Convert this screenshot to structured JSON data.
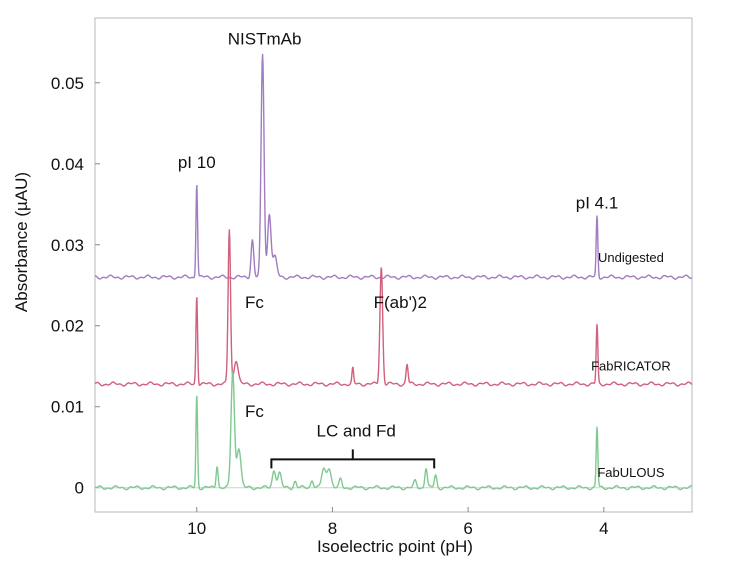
{
  "chart_data": {
    "type": "line",
    "title": "",
    "xlabel": "Isoelectric point (pH)",
    "ylabel": "Absorbance (µAU)",
    "xlim": [
      11.5,
      2.7
    ],
    "ylim": [
      -0.003,
      0.058
    ],
    "x_direction": "reversed",
    "x_ticks": [
      10,
      8,
      6,
      4
    ],
    "y_ticks": [
      {
        "value": 0,
        "label": "0"
      },
      {
        "value": 0.01,
        "label": "0.01"
      },
      {
        "value": 0.02,
        "label": "0.02"
      },
      {
        "value": 0.03,
        "label": "0.03"
      },
      {
        "value": 0.04,
        "label": "0.04"
      },
      {
        "value": 0.05,
        "label": "0.05"
      }
    ],
    "grid": false,
    "series": [
      {
        "name": "Undigested",
        "color": "#a07cc0",
        "baseline": 0.026,
        "peaks": [
          {
            "x": 10.0,
            "y": 0.0377,
            "w": 0.012
          },
          {
            "x": 9.18,
            "y": 0.0306,
            "w": 0.02
          },
          {
            "x": 9.03,
            "y": 0.0535,
            "w": 0.022
          },
          {
            "x": 8.93,
            "y": 0.0338,
            "w": 0.025
          },
          {
            "x": 8.85,
            "y": 0.0285,
            "w": 0.03
          },
          {
            "x": 4.1,
            "y": 0.0335,
            "w": 0.012
          }
        ]
      },
      {
        "name": "FabRICATOR",
        "color": "#d0607c",
        "baseline": 0.0128,
        "peaks": [
          {
            "x": 10.0,
            "y": 0.0238,
            "w": 0.012
          },
          {
            "x": 9.52,
            "y": 0.0319,
            "w": 0.018
          },
          {
            "x": 9.42,
            "y": 0.0158,
            "w": 0.03
          },
          {
            "x": 7.7,
            "y": 0.0147,
            "w": 0.012
          },
          {
            "x": 7.28,
            "y": 0.0273,
            "w": 0.02
          },
          {
            "x": 6.9,
            "y": 0.0152,
            "w": 0.015
          },
          {
            "x": 4.1,
            "y": 0.0201,
            "w": 0.012
          }
        ]
      },
      {
        "name": "FabULOUS",
        "color": "#80c890",
        "baseline": 0.0,
        "peaks": [
          {
            "x": 10.0,
            "y": 0.0115,
            "w": 0.012
          },
          {
            "x": 9.7,
            "y": 0.0028,
            "w": 0.015
          },
          {
            "x": 9.47,
            "y": 0.0143,
            "w": 0.025
          },
          {
            "x": 9.38,
            "y": 0.005,
            "w": 0.03
          },
          {
            "x": 8.86,
            "y": 0.0022,
            "w": 0.025
          },
          {
            "x": 8.78,
            "y": 0.0018,
            "w": 0.025
          },
          {
            "x": 8.55,
            "y": 0.0008,
            "w": 0.02
          },
          {
            "x": 8.3,
            "y": 0.001,
            "w": 0.02
          },
          {
            "x": 8.13,
            "y": 0.0022,
            "w": 0.03
          },
          {
            "x": 8.05,
            "y": 0.0025,
            "w": 0.03
          },
          {
            "x": 7.88,
            "y": 0.001,
            "w": 0.02
          },
          {
            "x": 6.78,
            "y": 0.0008,
            "w": 0.02
          },
          {
            "x": 6.62,
            "y": 0.0025,
            "w": 0.018
          },
          {
            "x": 6.48,
            "y": 0.0015,
            "w": 0.018
          },
          {
            "x": 4.1,
            "y": 0.0075,
            "w": 0.012
          }
        ]
      }
    ],
    "annotations": [
      {
        "key": "nistmab",
        "text": "NISTmAb",
        "x": 9.0,
        "y": 0.0547
      },
      {
        "key": "pi10",
        "text": "pI 10",
        "x": 10.0,
        "y": 0.0395
      },
      {
        "key": "pi41",
        "text": "pI 4.1",
        "x": 4.1,
        "y": 0.0345
      },
      {
        "key": "fc-rica",
        "text": "Fc",
        "x": 9.15,
        "y": 0.0222
      },
      {
        "key": "fab2",
        "text": "F(ab')2",
        "x": 7.0,
        "y": 0.0222
      },
      {
        "key": "fc-ulous",
        "text": "Fc",
        "x": 9.15,
        "y": 0.0087
      },
      {
        "key": "lc-fd",
        "text": "LC and Fd",
        "x": 7.65,
        "y": 0.0063
      }
    ],
    "bracket": {
      "x_start": 8.9,
      "x_end": 6.5,
      "y": 0.0035
    },
    "series_labels": [
      {
        "key": "undigested",
        "text": "Undigested",
        "x": 3.6,
        "y": 0.0279
      },
      {
        "key": "fabricator",
        "text": "FabRICATOR",
        "x": 3.6,
        "y": 0.0145
      },
      {
        "key": "fabulous",
        "text": "FabULOUS",
        "x": 3.6,
        "y": 0.0013
      }
    ]
  }
}
